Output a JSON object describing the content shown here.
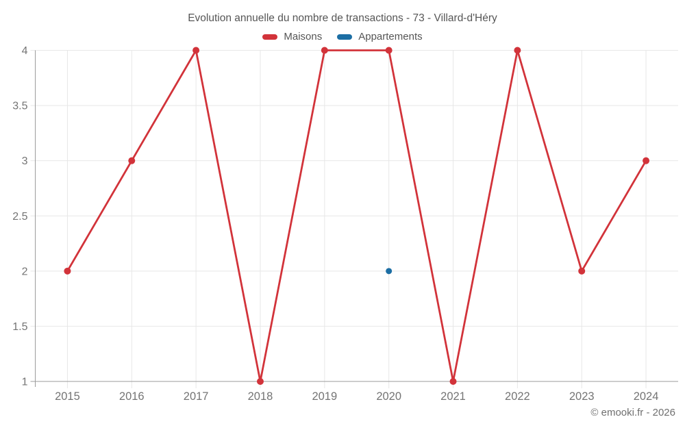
{
  "header": {
    "title": "Evolution annuelle du nombre de transactions - 73 - Villard-d'Héry"
  },
  "footer": {
    "watermark": "© emooki.fr - 2026"
  },
  "legend": {
    "items": [
      {
        "label": "Maisons",
        "color": "#d2333a"
      },
      {
        "label": "Appartements",
        "color": "#1c6ea4"
      }
    ]
  },
  "colors": {
    "maisons": "#d2333a",
    "appartements": "#1c6ea4",
    "gridline": "#e7e7e7",
    "axis": "#9b9b9b",
    "tick_label": "#747474",
    "title_text": "#565656"
  },
  "chart_data": {
    "type": "line",
    "title": "Evolution annuelle du nombre de transactions - 73 - Villard-d'Héry",
    "categories": [
      "2015",
      "2016",
      "2017",
      "2018",
      "2019",
      "2020",
      "2021",
      "2022",
      "2023",
      "2024"
    ],
    "series": [
      {
        "name": "Maisons",
        "color": "#d2333a",
        "values": [
          2,
          3,
          4,
          1,
          4,
          4,
          1,
          4,
          2,
          3
        ]
      },
      {
        "name": "Appartements",
        "color": "#1c6ea4",
        "values": [
          null,
          null,
          null,
          null,
          null,
          2,
          null,
          null,
          null,
          null
        ]
      }
    ],
    "xlabel": "",
    "ylabel": "",
    "ylim": [
      1,
      4
    ],
    "yticks": [
      1,
      1.5,
      2,
      2.5,
      3,
      3.5,
      4
    ],
    "grid": true,
    "legend_position": "top",
    "annotations": [
      "© emooki.fr - 2026"
    ]
  }
}
